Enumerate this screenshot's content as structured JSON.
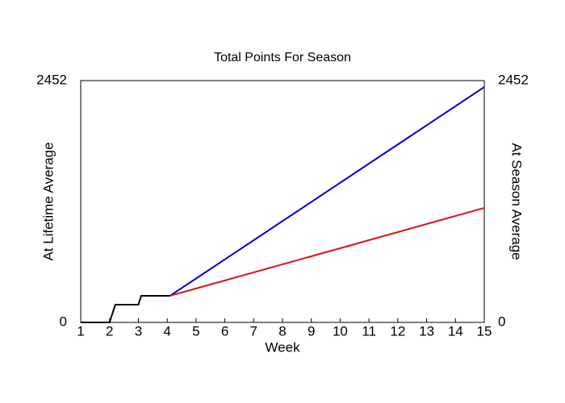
{
  "chart_data": {
    "type": "line",
    "title": "Total Points For Season",
    "xlabel": "Week",
    "ylabel": "At Lifetime Average",
    "y2label": "At Season Average",
    "xlim": [
      1,
      15
    ],
    "xticks": [
      1,
      2,
      3,
      4,
      5,
      6,
      7,
      8,
      9,
      10,
      11,
      12,
      13,
      14,
      15
    ],
    "ylim": [
      0,
      2452
    ],
    "yticks": [
      0,
      2452
    ],
    "y2lim": [
      0,
      2452
    ],
    "y2ticks": [
      0,
      2452
    ],
    "series": [
      {
        "color": "#0000cc",
        "x": [
          4.1,
          15
        ],
        "values": [
          270,
          2387
        ]
      },
      {
        "color": "#dd1111",
        "axis": "y2",
        "x": [
          4.1,
          15
        ],
        "values": [
          270,
          1161
        ]
      },
      {
        "color": "#000000",
        "x": [
          1,
          2,
          2.2,
          3,
          3.1,
          4.1
        ],
        "values": [
          0,
          0,
          180,
          180,
          270,
          270
        ]
      }
    ]
  }
}
